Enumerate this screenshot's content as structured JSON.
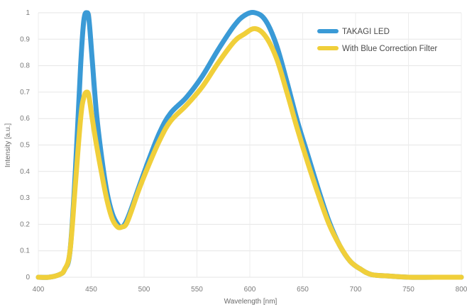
{
  "chart_data": {
    "type": "line",
    "xlabel": "Wavelength [nm]",
    "ylabel": "Intensity [a.u.]",
    "xlim": [
      400,
      800
    ],
    "ylim": [
      0,
      1
    ],
    "xticks": [
      400,
      450,
      500,
      550,
      600,
      650,
      700,
      750,
      800
    ],
    "yticks": [
      0,
      0.1,
      0.2,
      0.3,
      0.4,
      0.5,
      0.6,
      0.7,
      0.8,
      0.9,
      1
    ],
    "ytick_labels": [
      "0",
      "0.1",
      "0.2",
      "0.3",
      "0.4",
      "0.5",
      "0.6",
      "0.7",
      "0.8",
      "0.9",
      "1"
    ],
    "grid": true,
    "legend_position": "top-right",
    "series": [
      {
        "name": "TAKAGI LED",
        "color": "#3a9ad6",
        "x": [
          400,
          410,
          420,
          425,
          430,
          435,
          440,
          443,
          446,
          448,
          451,
          455,
          460,
          465,
          470,
          475,
          479,
          483,
          488,
          495,
          505,
          515,
          525,
          540,
          555,
          570,
          585,
          595,
          605,
          615,
          625,
          635,
          645,
          655,
          665,
          675,
          685,
          695,
          705,
          715,
          730,
          750,
          775,
          800
        ],
        "y": [
          0.0,
          0.0,
          0.01,
          0.03,
          0.1,
          0.4,
          0.8,
          0.97,
          1.0,
          0.97,
          0.82,
          0.62,
          0.45,
          0.32,
          0.24,
          0.2,
          0.19,
          0.21,
          0.26,
          0.34,
          0.45,
          0.55,
          0.62,
          0.68,
          0.76,
          0.86,
          0.95,
          0.99,
          1.0,
          0.97,
          0.88,
          0.74,
          0.59,
          0.46,
          0.33,
          0.21,
          0.12,
          0.06,
          0.03,
          0.01,
          0.005,
          0.0,
          0.0,
          0.0
        ]
      },
      {
        "name": "With Blue Correction Filter",
        "color": "#f0cf3a",
        "x": [
          400,
          410,
          420,
          425,
          430,
          435,
          440,
          443,
          446,
          448,
          451,
          455,
          460,
          465,
          470,
          475,
          479,
          483,
          488,
          495,
          505,
          515,
          525,
          540,
          555,
          570,
          585,
          595,
          605,
          615,
          625,
          635,
          645,
          655,
          665,
          675,
          685,
          695,
          705,
          715,
          730,
          750,
          775,
          800
        ],
        "y": [
          0.0,
          0.0,
          0.01,
          0.03,
          0.1,
          0.35,
          0.6,
          0.68,
          0.7,
          0.68,
          0.6,
          0.5,
          0.39,
          0.29,
          0.22,
          0.19,
          0.19,
          0.2,
          0.25,
          0.33,
          0.43,
          0.52,
          0.59,
          0.65,
          0.72,
          0.81,
          0.89,
          0.92,
          0.94,
          0.91,
          0.83,
          0.7,
          0.56,
          0.43,
          0.31,
          0.2,
          0.12,
          0.06,
          0.03,
          0.01,
          0.005,
          0.0,
          0.0,
          0.0
        ]
      }
    ]
  }
}
